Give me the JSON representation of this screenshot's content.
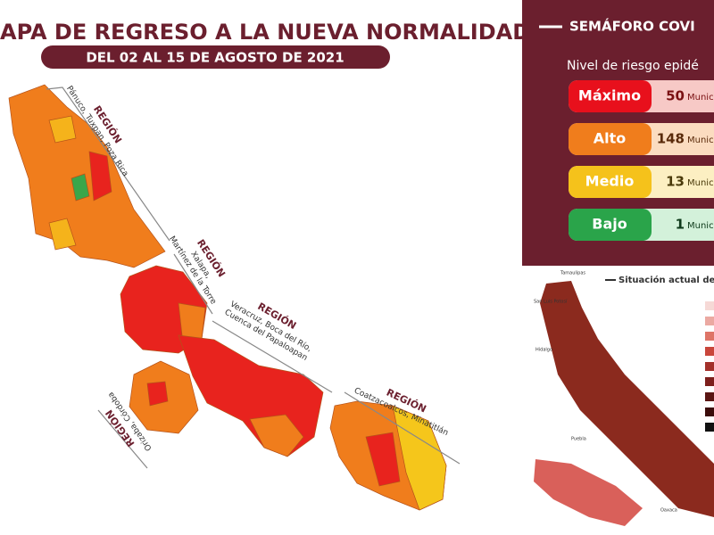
{
  "header": {
    "title": "APA DE REGRESO A LA NUEVA NORMALIDAD",
    "subtitle": "DEL 02 AL 15 DE AGOSTO DE 2021"
  },
  "regions": [
    {
      "label": "REGIÓN",
      "lines": [
        "Pánuco, Tuxpan, Poza Rica"
      ]
    },
    {
      "label": "REGIÓN",
      "lines": [
        "Xalapa,",
        "Martínez de la Torre"
      ]
    },
    {
      "label": "REGIÓN",
      "lines": [
        "Veracruz, Boca del Río,",
        "Cuenca del Papaloapan"
      ]
    },
    {
      "label": "REGIÓN",
      "lines": [
        "Coatzacoalcos, Minatitlán"
      ]
    },
    {
      "label": "REGIÓN",
      "lines": [
        "Orizaba, Córdoba"
      ]
    }
  ],
  "panel": {
    "title": "SEMÁFORO COVI",
    "subtitle": "Nivel de riesgo epidé",
    "levels": [
      {
        "name": "Máximo",
        "count": 50,
        "unit": "Munic"
      },
      {
        "name": "Alto",
        "count": 148,
        "unit": "Munic"
      },
      {
        "name": "Medio",
        "count": 13,
        "unit": "Munic"
      },
      {
        "name": "Bajo",
        "count": 1,
        "unit": "Munic"
      }
    ]
  },
  "inset": {
    "title": "Situación actual de",
    "states": [
      "Tamaulipas",
      "San Luis Potosí",
      "Hidalgo",
      "Puebla",
      "Oaxaca"
    ]
  }
}
